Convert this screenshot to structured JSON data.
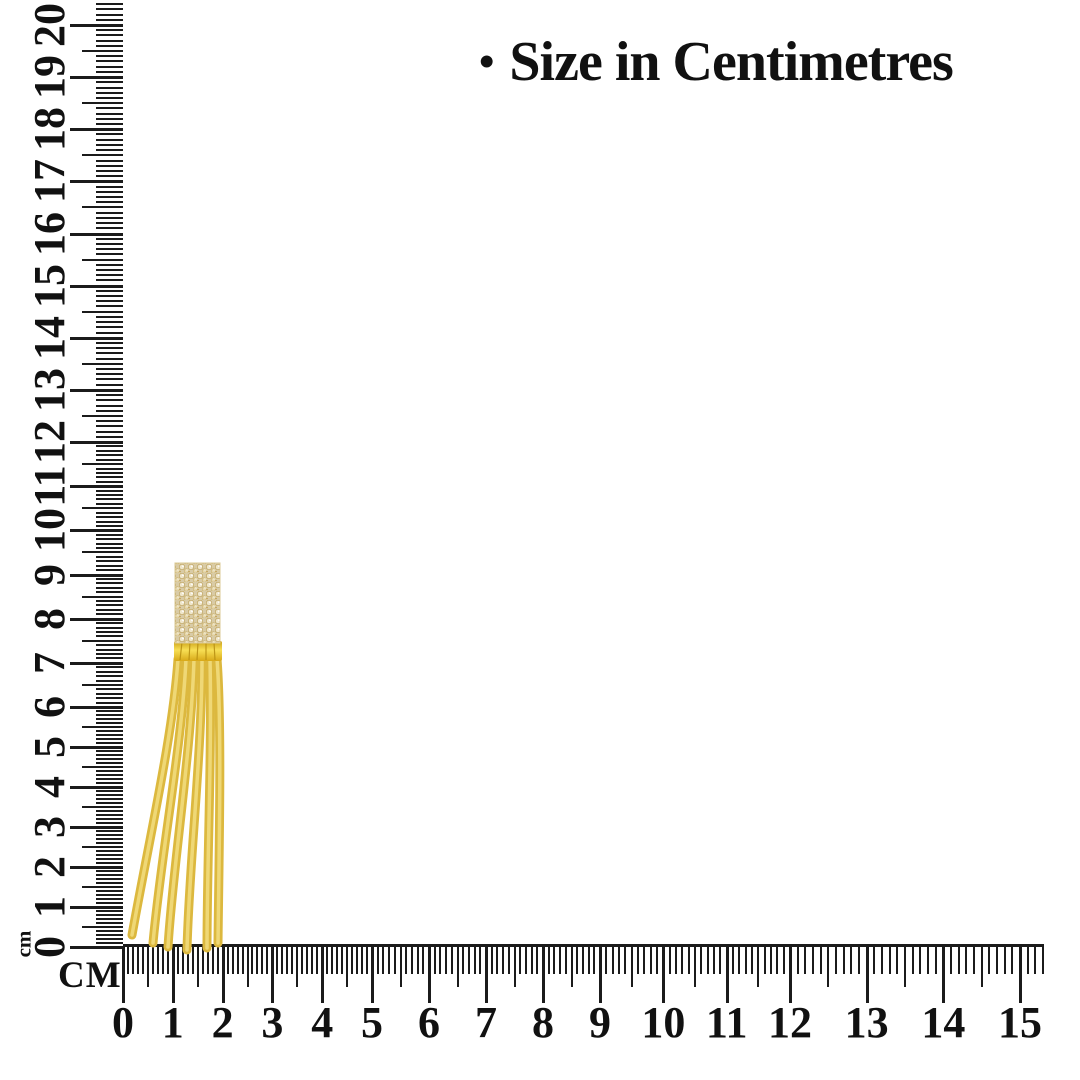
{
  "title": {
    "bullet": "•",
    "text": "Size in Centimetres"
  },
  "vertical_ruler": {
    "unit": "cm",
    "min": 0,
    "max": 20,
    "labels": [
      "0",
      "1",
      "2",
      "3",
      "4",
      "5",
      "6",
      "7",
      "8",
      "9",
      "10",
      "11",
      "12",
      "13",
      "14",
      "15",
      "16",
      "17",
      "18",
      "19",
      "20"
    ]
  },
  "horizontal_ruler": {
    "unit": "CM",
    "min": 0,
    "max": 15,
    "labels": [
      "0",
      "1",
      "2",
      "3",
      "4",
      "5",
      "6",
      "7",
      "8",
      "9",
      "10",
      "11",
      "12",
      "13",
      "14",
      "15"
    ]
  },
  "product": {
    "kind": "gold-rhinestone-tassel-earring",
    "colors": {
      "tick_black": "#1b1b1b",
      "strand_gold": "#dcb83e",
      "strand_highlight": "#f2dc7d",
      "cap_gold": "#e9bc22",
      "stone_base": "#d9cba6",
      "stone_sparkle": "#f6efdc"
    }
  }
}
